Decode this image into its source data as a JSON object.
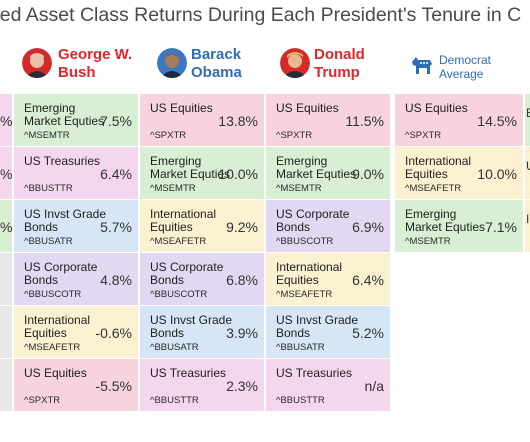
{
  "title": "zed Asset Class Returns During Each President's Tenure in C",
  "presidents": [
    {
      "id": "bush",
      "line1": "George W.",
      "line2": "Bush",
      "color": "red"
    },
    {
      "id": "obama",
      "line1": "Barack",
      "line2": "Obama",
      "color": "blue"
    },
    {
      "id": "trump",
      "line1": "Donald",
      "line2": "Trump",
      "color": "red"
    }
  ],
  "democrat_average": {
    "line1": "Democrat",
    "line2": "Average"
  },
  "left_edge_fragments": [
    "%",
    "%",
    "%",
    "",
    "",
    ""
  ],
  "right_edge_fragments": [
    "E",
    "U",
    "I"
  ],
  "colors": {
    "US Equities": "#f7d4dd",
    "Emerging Market Equities": "#d8efd3",
    "US Treasuries": "#f5d6ef",
    "US Invst Grade Bonds": "#d6e6f5",
    "US Corporate Bonds": "#e3d8f2",
    "International Equities": "#fbf0d0",
    "empty": "#e8e8e8"
  },
  "chart_data": {
    "type": "table",
    "title": "zed Asset Class Returns During Each President's Tenure in C",
    "columns": [
      "George W. Bush",
      "Barack Obama",
      "Donald Trump",
      "Democrat Average"
    ],
    "rows_ranked": true,
    "cells": {
      "bush": [
        {
          "asset": "Emerging Market Equties",
          "key": "Emerging Market Equities",
          "ticker": "^MSEMTR",
          "value": "7.5%"
        },
        {
          "asset": "US Treasuries",
          "key": "US Treasuries",
          "ticker": "^BBUSTTR",
          "value": "6.4%"
        },
        {
          "asset": "US Invst Grade Bonds",
          "key": "US Invst Grade Bonds",
          "ticker": "^BBUSATR",
          "value": "5.7%"
        },
        {
          "asset": "US Corporate Bonds",
          "key": "US Corporate Bonds",
          "ticker": "^BBUSCOTR",
          "value": "4.8%"
        },
        {
          "asset": "International Equities",
          "key": "International Equities",
          "ticker": "^MSEAFETR",
          "value": "-0.6%"
        },
        {
          "asset": "US Equities",
          "key": "US Equities",
          "ticker": "^SPXTR",
          "value": "-5.5%"
        }
      ],
      "obama": [
        {
          "asset": "US Equities",
          "key": "US Equities",
          "ticker": "^SPXTR",
          "value": "13.8%"
        },
        {
          "asset": "Emerging Market Equties",
          "key": "Emerging Market Equities",
          "ticker": "^MSEMTR",
          "value": "10.0%"
        },
        {
          "asset": "International Equities",
          "key": "International Equities",
          "ticker": "^MSEAFETR",
          "value": "9.2%"
        },
        {
          "asset": "US Corporate Bonds",
          "key": "US Corporate Bonds",
          "ticker": "^BBUSCOTR",
          "value": "6.8%"
        },
        {
          "asset": "US Invst Grade Bonds",
          "key": "US Invst Grade Bonds",
          "ticker": "^BBUSATR",
          "value": "3.9%"
        },
        {
          "asset": "US Treasuries",
          "key": "US Treasuries",
          "ticker": "^BBUSTTR",
          "value": "2.3%"
        }
      ],
      "trump": [
        {
          "asset": "US Equities",
          "key": "US Equities",
          "ticker": "^SPXTR",
          "value": "11.5%"
        },
        {
          "asset": "Emerging Market Equties",
          "key": "Emerging Market Equities",
          "ticker": "^MSEMTR",
          "value": "9.0%"
        },
        {
          "asset": "US Corporate Bonds",
          "key": "US Corporate Bonds",
          "ticker": "^BBUSCOTR",
          "value": "6.9%"
        },
        {
          "asset": "International Equities",
          "key": "International Equities",
          "ticker": "^MSEAFETR",
          "value": "6.4%"
        },
        {
          "asset": "US Invst Grade Bonds",
          "key": "US Invst Grade Bonds",
          "ticker": "^BBUSATR",
          "value": "5.2%"
        },
        {
          "asset": "US Treasuries",
          "key": "US Treasuries",
          "ticker": "^BBUSTTR",
          "value": "n/a"
        }
      ],
      "democrat_average": [
        {
          "asset": "US Equities",
          "key": "US Equities",
          "ticker": "^SPXTR",
          "value": "14.5%"
        },
        {
          "asset": "International Equities",
          "key": "International Equities",
          "ticker": "^MSEAFETR",
          "value": "10.0%"
        },
        {
          "asset": "Emerging Market Equties",
          "key": "Emerging Market Equities",
          "ticker": "^MSEMTR",
          "value": "7.1%"
        }
      ]
    }
  }
}
